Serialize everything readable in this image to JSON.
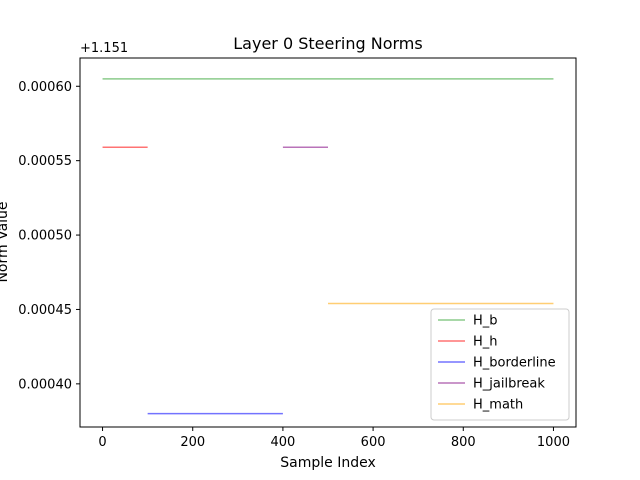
{
  "chart_data": {
    "type": "line",
    "title": "Layer 0 Steering Norms",
    "xlabel": "Sample Index",
    "ylabel": "Norm Value",
    "y_offset_label": "+1.151",
    "xlim": [
      -50,
      1050
    ],
    "ylim": [
      0.000371,
      0.000619
    ],
    "xticks": [
      0,
      200,
      400,
      600,
      800,
      1000
    ],
    "yticks": [
      0.0004,
      0.00045,
      0.0005,
      0.00055,
      0.0006
    ],
    "ytick_labels": [
      "0.00040",
      "0.00045",
      "0.00050",
      "0.00055",
      "0.00060"
    ],
    "grid": false,
    "legend_position": "lower right",
    "series": [
      {
        "name": "H_b",
        "color": "#2ca02c",
        "x": [
          0,
          1000
        ],
        "y": [
          0.000605,
          0.000605
        ]
      },
      {
        "name": "H_h",
        "color": "#ff0000",
        "x": [
          0,
          100
        ],
        "y": [
          0.000559,
          0.000559
        ]
      },
      {
        "name": "H_borderline",
        "color": "#0000ff",
        "x": [
          100,
          400
        ],
        "y": [
          0.00038,
          0.00038
        ]
      },
      {
        "name": "H_jailbreak",
        "color": "#800080",
        "x": [
          400,
          500
        ],
        "y": [
          0.000559,
          0.000559
        ]
      },
      {
        "name": "H_math",
        "color": "#ffa500",
        "x": [
          500,
          1000
        ],
        "y": [
          0.000454,
          0.000454
        ]
      }
    ]
  }
}
